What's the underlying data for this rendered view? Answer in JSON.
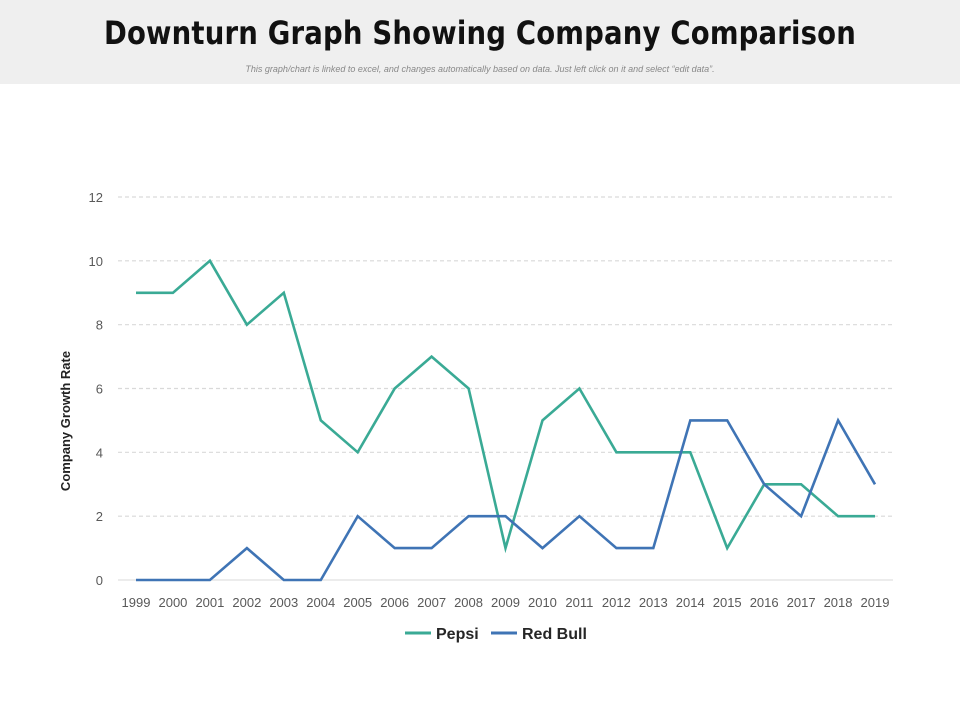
{
  "header": {
    "title": "Downturn Graph Showing Company Comparison",
    "subtitle": "This graph/chart is linked to excel, and changes automatically based on data. Just left click on it and select “edit data”."
  },
  "chart_data": {
    "type": "line",
    "title": "",
    "xlabel": "",
    "ylabel": "Company Growth Rate",
    "categories": [
      "1999",
      "2000",
      "2001",
      "2002",
      "2003",
      "2004",
      "2005",
      "2006",
      "2007",
      "2008",
      "2009",
      "2010",
      "2011",
      "2012",
      "2013",
      "2014",
      "2015",
      "2016",
      "2017",
      "2018",
      "2019"
    ],
    "ylim": [
      0,
      12
    ],
    "yticks": [
      0,
      2,
      4,
      6,
      8,
      10,
      12
    ],
    "grid": true,
    "legend_position": "bottom",
    "series": [
      {
        "name": "Pepsi",
        "color": "#3aaa95",
        "values": [
          9,
          9,
          10,
          8,
          9,
          5,
          4,
          6,
          7,
          6,
          1,
          5,
          6,
          4,
          4,
          4,
          1,
          3,
          3,
          2,
          2
        ]
      },
      {
        "name": "Red Bull",
        "color": "#3f74b5",
        "values": [
          0,
          0,
          0,
          1,
          0,
          0,
          2,
          1,
          1,
          2,
          2,
          1,
          2,
          1,
          1,
          5,
          5,
          3,
          2,
          5,
          3
        ]
      }
    ]
  }
}
